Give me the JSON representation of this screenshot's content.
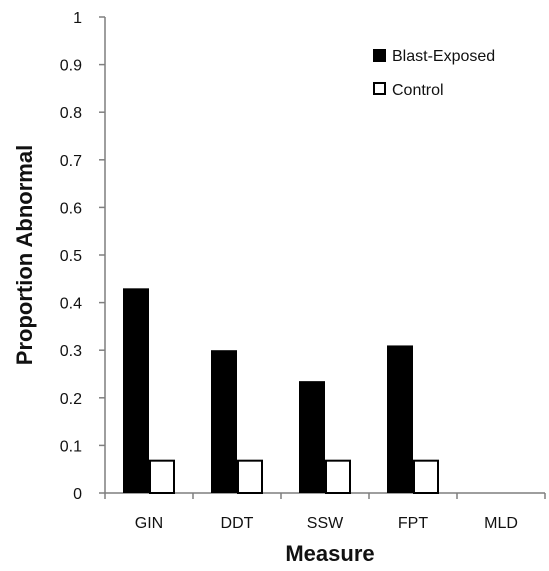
{
  "chart_data": {
    "type": "bar",
    "xlabel": "Measure",
    "ylabel": "Proportion Abnormal",
    "categories": [
      "GIN",
      "DDT",
      "SSW",
      "FPT",
      "MLD"
    ],
    "series": [
      {
        "name": "Blast-Exposed",
        "values": [
          0.43,
          0.3,
          0.235,
          0.31,
          0
        ],
        "color": "#000000",
        "fill": "solid"
      },
      {
        "name": "Control",
        "values": [
          0.07,
          0.07,
          0.07,
          0.07,
          0
        ],
        "color": "#000000",
        "fill": "white-outline"
      }
    ],
    "ylim": [
      0,
      1
    ],
    "yticks": [
      "0",
      "0.1",
      "0.2",
      "0.3",
      "0.4",
      "0.5",
      "0.6",
      "0.7",
      "0.8",
      "0.9",
      "1"
    ],
    "grid": false,
    "legend_position": "top-right"
  }
}
